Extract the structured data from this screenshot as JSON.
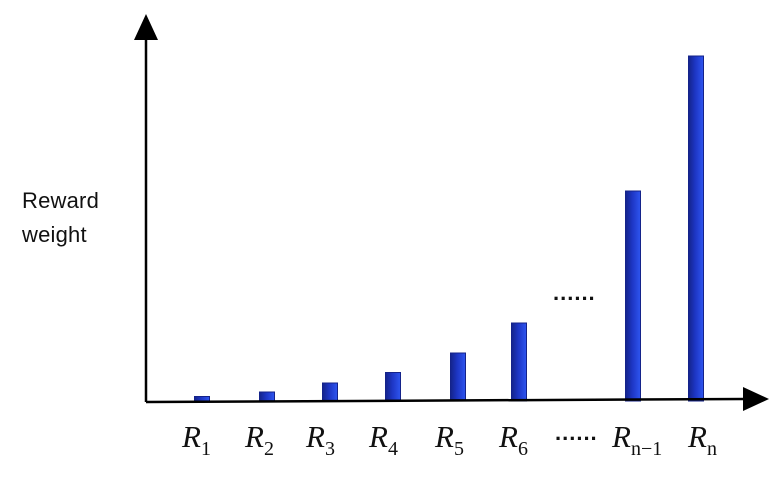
{
  "chart_data": {
    "type": "bar",
    "ylabel_lines": [
      "Reward",
      "weight"
    ],
    "xlabel": "",
    "title": "",
    "categories": [
      {
        "base": "R",
        "sub": "1"
      },
      {
        "base": "R",
        "sub": "2"
      },
      {
        "base": "R",
        "sub": "3"
      },
      {
        "base": "R",
        "sub": "4"
      },
      {
        "base": "R",
        "sub": "5"
      },
      {
        "base": "R",
        "sub": "6"
      },
      {
        "base": "R",
        "sub": "n−1"
      },
      {
        "base": "R",
        "sub": "n"
      }
    ],
    "values": [
      1.5,
      3,
      6,
      9.5,
      16,
      26,
      70,
      115
    ],
    "ylim": [
      0,
      120
    ],
    "gap_marker": "......",
    "gap_after_index": 5,
    "grid": false,
    "colors": {
      "bar_dark": "#14238a",
      "bar_mid": "#1d36c4",
      "bar_light": "#2e55f0",
      "axis": "#000000"
    }
  }
}
